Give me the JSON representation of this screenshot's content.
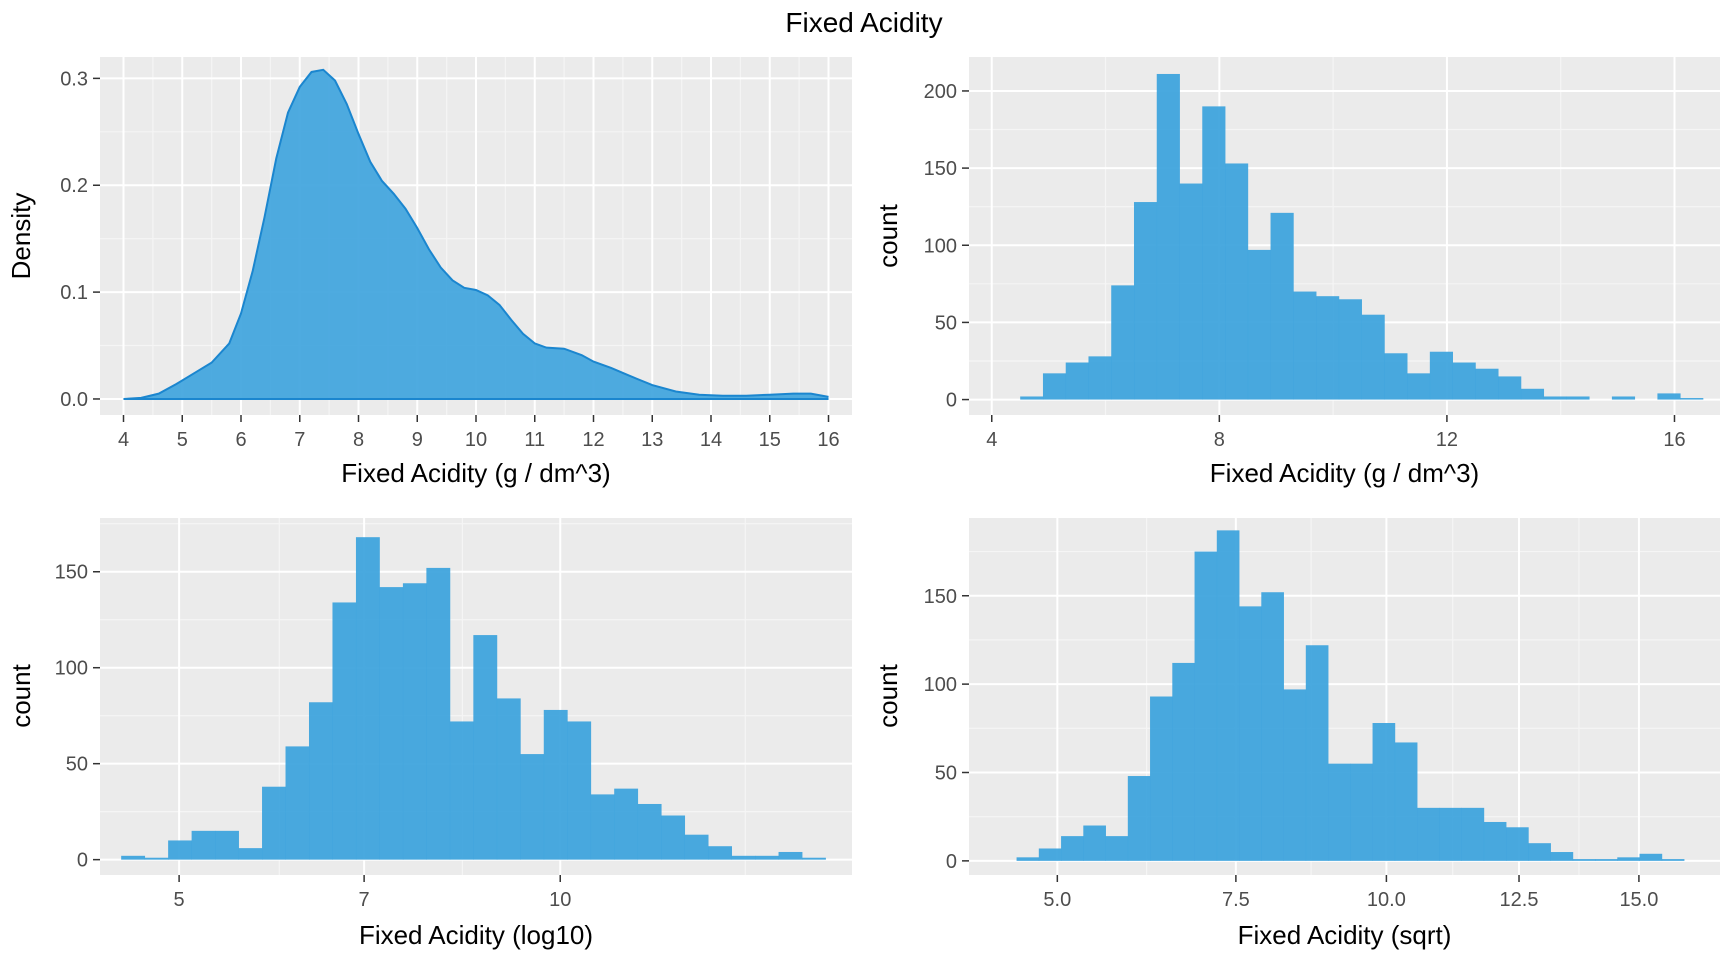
{
  "title": "Fixed Acidity",
  "fill_color": "#3fa4dd",
  "line_color": "#1b86cf",
  "panel_background": "#ebebeb",
  "chart_data": [
    {
      "type": "area",
      "ylabel": "Density",
      "xlabel": "Fixed Acidity (g / dm^3)",
      "xlim": [
        3.6,
        16.4
      ],
      "ylim": [
        -0.015,
        0.32
      ],
      "xticks": [
        4,
        5,
        6,
        7,
        8,
        9,
        10,
        11,
        12,
        13,
        14,
        15,
        16
      ],
      "xtick_labels": [
        "4",
        "5",
        "6",
        "7",
        "8",
        "9",
        "10",
        "11",
        "12",
        "13",
        "14",
        "15",
        "16"
      ],
      "yticks": [
        0,
        0.1,
        0.2,
        0.3
      ],
      "ytick_labels": [
        "0.0",
        "0.1",
        "0.2",
        "0.3"
      ],
      "x": [
        4.0,
        4.3,
        4.6,
        4.9,
        5.2,
        5.5,
        5.8,
        6.0,
        6.2,
        6.4,
        6.6,
        6.8,
        7.0,
        7.2,
        7.4,
        7.6,
        7.8,
        8.0,
        8.2,
        8.4,
        8.6,
        8.8,
        9.0,
        9.2,
        9.4,
        9.6,
        9.8,
        10.0,
        10.2,
        10.4,
        10.6,
        10.8,
        11.0,
        11.2,
        11.5,
        11.8,
        12.0,
        12.3,
        12.6,
        13.0,
        13.4,
        13.8,
        14.2,
        14.6,
        15.0,
        15.4,
        15.7,
        16.0
      ],
      "y": [
        0.0,
        0.001,
        0.005,
        0.014,
        0.024,
        0.034,
        0.052,
        0.08,
        0.12,
        0.17,
        0.225,
        0.268,
        0.292,
        0.306,
        0.308,
        0.298,
        0.276,
        0.248,
        0.222,
        0.204,
        0.192,
        0.178,
        0.16,
        0.14,
        0.123,
        0.111,
        0.104,
        0.102,
        0.097,
        0.088,
        0.074,
        0.061,
        0.052,
        0.048,
        0.047,
        0.041,
        0.035,
        0.029,
        0.022,
        0.013,
        0.007,
        0.004,
        0.003,
        0.003,
        0.004,
        0.005,
        0.005,
        0.002
      ]
    },
    {
      "type": "bar",
      "ylabel": "count",
      "xlabel": "Fixed Acidity (g / dm^3)",
      "xlim": [
        3.6,
        16.8
      ],
      "ylim": [
        -10,
        222
      ],
      "xticks": [
        4,
        8,
        12,
        16
      ],
      "xtick_labels": [
        "4",
        "8",
        "12",
        "16"
      ],
      "yticks": [
        0,
        50,
        100,
        150,
        200
      ],
      "ytick_labels": [
        "0",
        "50",
        "100",
        "150",
        "200"
      ],
      "bin_start": 4.5,
      "bin_width": 0.4,
      "values": [
        2,
        17,
        24,
        28,
        74,
        128,
        211,
        140,
        190,
        153,
        97,
        121,
        70,
        67,
        65,
        55,
        30,
        17,
        31,
        24,
        20,
        15,
        7,
        2,
        2,
        0,
        2,
        0,
        4,
        1
      ]
    },
    {
      "type": "bar",
      "ylabel": "count",
      "xlabel": "Fixed Acidity (log10)",
      "x_scale": "log10",
      "xlim": [
        4.33,
        17.0
      ],
      "ylim": [
        -8,
        178
      ],
      "xticks": [
        5,
        7,
        10
      ],
      "xtick_labels": [
        "5",
        "7",
        "10"
      ],
      "yticks": [
        0,
        50,
        100,
        150
      ],
      "ytick_labels": [
        "0",
        "50",
        "100",
        "150"
      ],
      "values": [
        2,
        1,
        10,
        15,
        15,
        6,
        38,
        59,
        82,
        134,
        168,
        142,
        144,
        152,
        72,
        117,
        84,
        55,
        78,
        72,
        34,
        37,
        29,
        23,
        13,
        7,
        2,
        2,
        4,
        1
      ]
    },
    {
      "type": "bar",
      "ylabel": "count",
      "xlabel": "Fixed Acidity (sqrt)",
      "x_scale": "sqrt",
      "xlim": [
        3.95,
        16.82
      ],
      "ylim": [
        -8,
        194
      ],
      "xticks": [
        5.0,
        7.5,
        10.0,
        12.5,
        15.0
      ],
      "xtick_labels": [
        "5.0",
        "7.5",
        "10.0",
        "12.5",
        "15.0"
      ],
      "yticks": [
        0,
        50,
        100,
        150
      ],
      "ytick_labels": [
        "0",
        "50",
        "100",
        "150"
      ],
      "values": [
        2,
        7,
        14,
        20,
        14,
        48,
        93,
        112,
        175,
        187,
        144,
        152,
        97,
        122,
        55,
        55,
        78,
        67,
        30,
        30,
        30,
        22,
        19,
        10,
        5,
        1,
        1,
        2,
        4,
        1
      ]
    }
  ]
}
